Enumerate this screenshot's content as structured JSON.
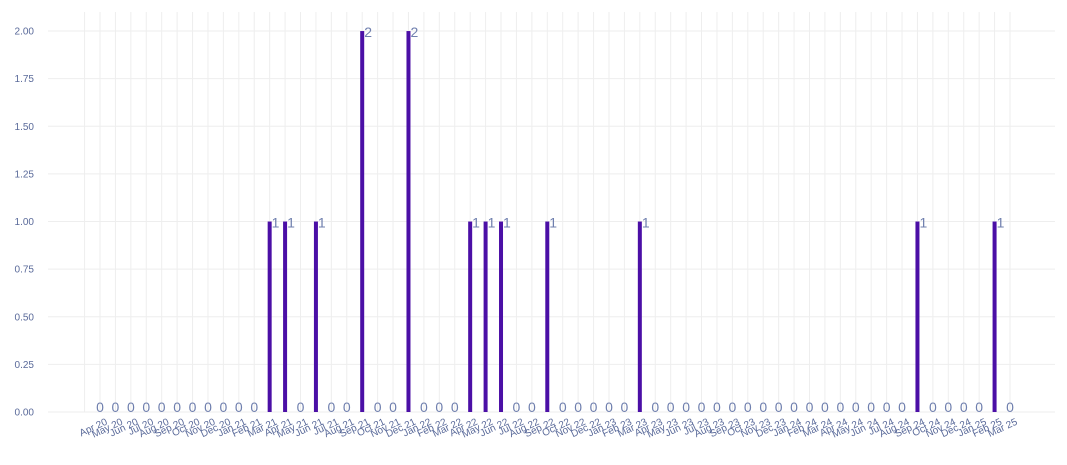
{
  "chart_data": {
    "type": "bar",
    "title": "",
    "xlabel": "",
    "ylabel": "",
    "ylim": [
      0,
      2.1
    ],
    "yticks": [
      "0.00",
      "0.25",
      "0.50",
      "0.75",
      "1.00",
      "1.25",
      "1.50",
      "1.75",
      "2.00"
    ],
    "grid": true,
    "bar_color": "#4b0fa6",
    "categories": [
      "Apr 20",
      "May 20",
      "Jun 20",
      "Jul 20",
      "Aug 20",
      "Sep 20",
      "Oct 20",
      "Nov 20",
      "Dec 20",
      "Jan 21",
      "Feb 21",
      "Mar 21",
      "Apr 21",
      "May 21",
      "Jun 21",
      "Jul 21",
      "Aug 21",
      "Sep 21",
      "Oct 21",
      "Nov 21",
      "Dec 21",
      "Jan 22",
      "Feb 22",
      "Mar 22",
      "Apr 22",
      "May 22",
      "Jun 22",
      "Jul 22",
      "Aug 22",
      "Sep 22",
      "Oct 22",
      "Nov 22",
      "Dec 22",
      "Jan 23",
      "Feb 23",
      "Mar 23",
      "Apr 23",
      "May 23",
      "Jun 23",
      "Jul 23",
      "Aug 23",
      "Sep 23",
      "Oct 23",
      "Nov 23",
      "Dec 23",
      "Jan 24",
      "Feb 24",
      "Mar 24",
      "Apr 24",
      "May 24",
      "Jun 24",
      "Jul 24",
      "Aug 24",
      "Sep 24",
      "Oct 24",
      "Nov 24",
      "Dec 24",
      "Jan 25",
      "Feb 25",
      "Mar 25"
    ],
    "values": [
      0,
      0,
      0,
      0,
      0,
      0,
      0,
      0,
      0,
      0,
      0,
      1,
      1,
      0,
      1,
      0,
      0,
      2,
      0,
      0,
      2,
      0,
      0,
      0,
      1,
      1,
      1,
      0,
      0,
      1,
      0,
      0,
      0,
      0,
      0,
      1,
      0,
      0,
      0,
      0,
      0,
      0,
      0,
      0,
      0,
      0,
      0,
      0,
      0,
      0,
      0,
      0,
      0,
      1,
      0,
      0,
      0,
      0,
      1,
      0
    ]
  }
}
